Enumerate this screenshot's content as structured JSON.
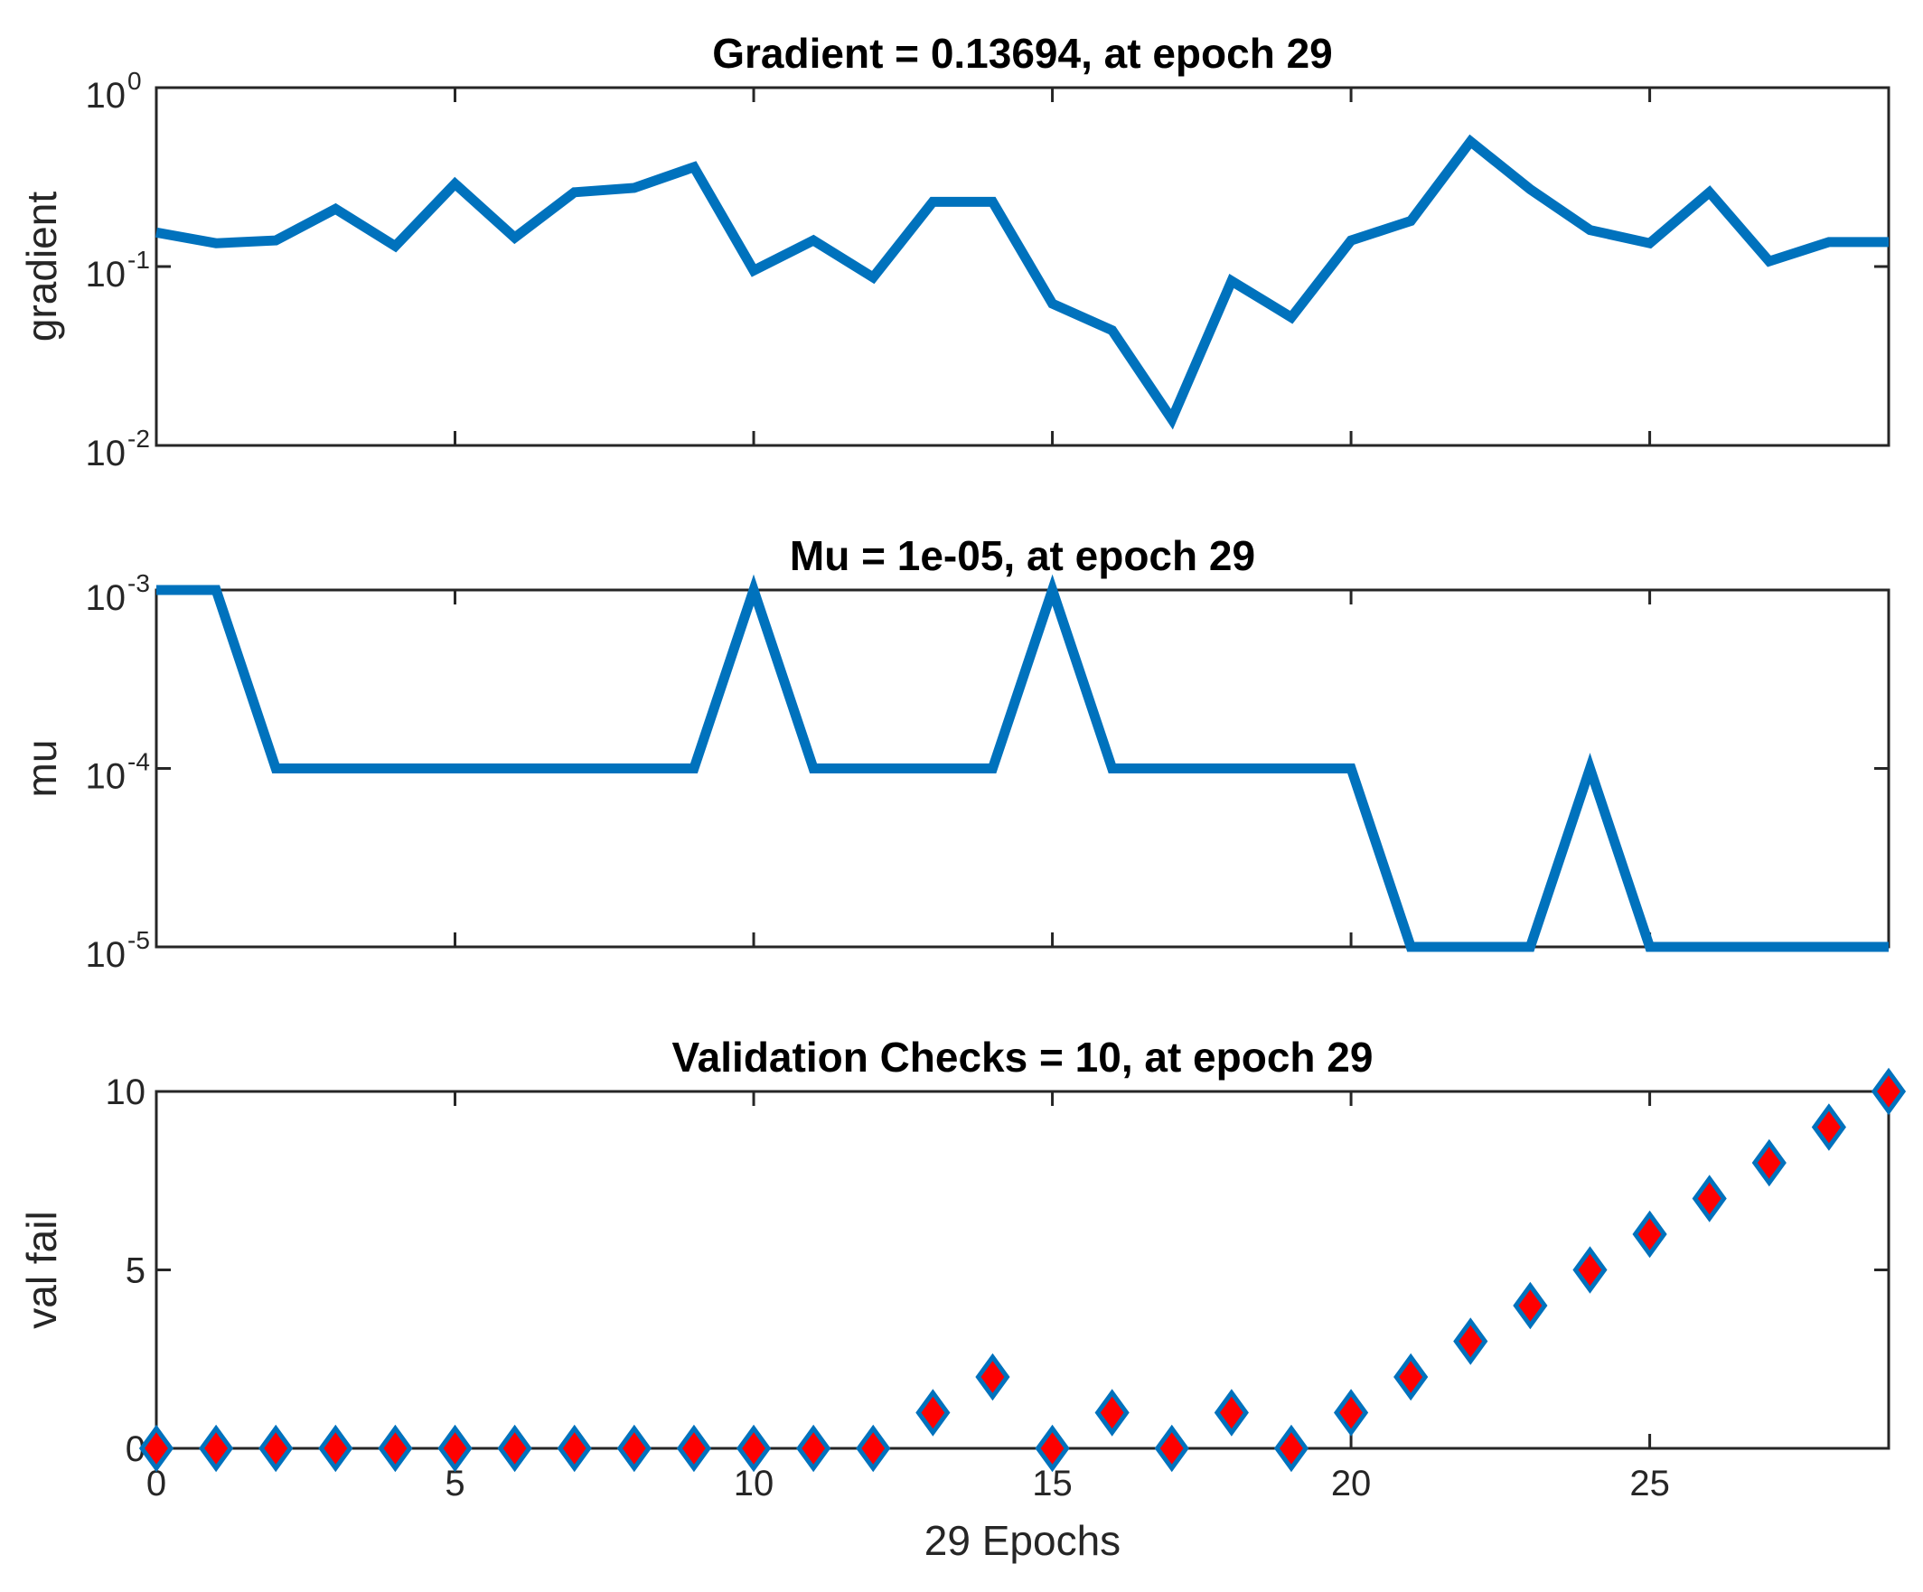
{
  "colors": {
    "line": "#0072BD",
    "marker_fill": "#FF0000",
    "marker_edge": "#0072BD",
    "axes": "#262626"
  },
  "chart_data": [
    {
      "type": "line",
      "title": "Gradient = 0.13694, at epoch 29",
      "ylabel": "gradient",
      "xlabel": "",
      "yscale": "log",
      "xlim": [
        0,
        29
      ],
      "ylim": [
        0.01,
        1
      ],
      "yticks": [
        {
          "base": "10",
          "exp": "-2",
          "value": 0.01
        },
        {
          "base": "10",
          "exp": "-1",
          "value": 0.1
        },
        {
          "base": "10",
          "exp": "0",
          "value": 1
        }
      ],
      "xticks": [
        5,
        10,
        15,
        20,
        25
      ],
      "x": [
        0,
        1,
        2,
        3,
        4,
        5,
        6,
        7,
        8,
        9,
        10,
        11,
        12,
        13,
        14,
        15,
        16,
        17,
        18,
        19,
        20,
        21,
        22,
        23,
        24,
        25,
        26,
        27,
        28,
        29
      ],
      "values": [
        0.155,
        0.135,
        0.14,
        0.21,
        0.13,
        0.29,
        0.145,
        0.26,
        0.275,
        0.36,
        0.095,
        0.14,
        0.087,
        0.23,
        0.23,
        0.062,
        0.044,
        0.014,
        0.083,
        0.052,
        0.14,
        0.18,
        0.5,
        0.27,
        0.16,
        0.135,
        0.26,
        0.107,
        0.137,
        0.137
      ]
    },
    {
      "type": "line",
      "title": "Mu = 1e-05, at epoch 29",
      "ylabel": "mu",
      "xlabel": "",
      "yscale": "log",
      "xlim": [
        0,
        29
      ],
      "ylim": [
        1e-05,
        0.001
      ],
      "yticks": [
        {
          "base": "10",
          "exp": "-5",
          "value": 1e-05
        },
        {
          "base": "10",
          "exp": "-4",
          "value": 0.0001
        },
        {
          "base": "10",
          "exp": "-3",
          "value": 0.001
        }
      ],
      "xticks": [
        5,
        10,
        15,
        20,
        25
      ],
      "x": [
        0,
        1,
        2,
        3,
        4,
        5,
        6,
        7,
        8,
        9,
        10,
        11,
        12,
        13,
        14,
        15,
        16,
        17,
        18,
        19,
        20,
        21,
        22,
        23,
        24,
        25,
        26,
        27,
        28,
        29
      ],
      "values": [
        0.001,
        0.001,
        0.0001,
        0.0001,
        0.0001,
        0.0001,
        0.0001,
        0.0001,
        0.0001,
        0.0001,
        0.001,
        0.0001,
        0.0001,
        0.0001,
        0.0001,
        0.001,
        0.0001,
        0.0001,
        0.0001,
        0.0001,
        0.0001,
        1e-05,
        1e-05,
        1e-05,
        0.0001,
        1e-05,
        1e-05,
        1e-05,
        1e-05,
        1e-05
      ]
    },
    {
      "type": "scatter",
      "title": "Validation Checks = 10, at epoch 29",
      "ylabel": "val fail",
      "xlabel": "29 Epochs",
      "yscale": "linear",
      "xlim": [
        0,
        29
      ],
      "ylim": [
        0,
        10
      ],
      "yticks": [
        {
          "label": "0",
          "value": 0
        },
        {
          "label": "5",
          "value": 5
        },
        {
          "label": "10",
          "value": 10
        }
      ],
      "xticks": [
        0,
        5,
        10,
        15,
        20,
        25
      ],
      "marker": "diamond",
      "x": [
        0,
        1,
        2,
        3,
        4,
        5,
        6,
        7,
        8,
        9,
        10,
        11,
        12,
        13,
        14,
        15,
        16,
        17,
        18,
        19,
        20,
        21,
        22,
        23,
        24,
        25,
        26,
        27,
        28,
        29
      ],
      "values": [
        0,
        0,
        0,
        0,
        0,
        0,
        0,
        0,
        0,
        0,
        0,
        0,
        0,
        1,
        2,
        0,
        1,
        0,
        1,
        0,
        1,
        2,
        3,
        4,
        5,
        6,
        7,
        8,
        9,
        10
      ]
    }
  ]
}
